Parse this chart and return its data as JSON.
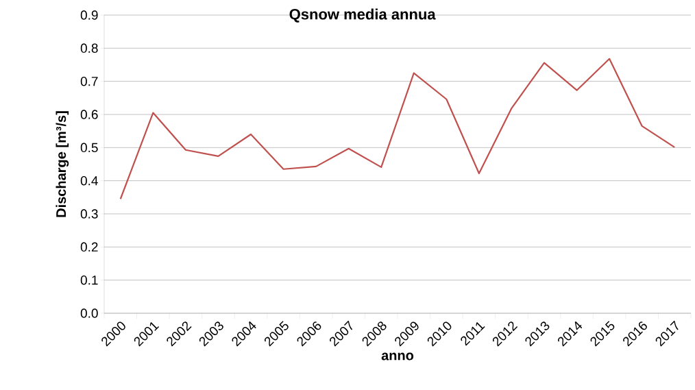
{
  "chart_data": {
    "type": "line",
    "title": "Qsnow media annua",
    "xlabel": "anno",
    "ylabel": "Discharge [m³/s]",
    "categories": [
      "2000",
      "2001",
      "2002",
      "2003",
      "2004",
      "2005",
      "2006",
      "2007",
      "2008",
      "2009",
      "2010",
      "2011",
      "2012",
      "2013",
      "2014",
      "2015",
      "2016",
      "2017"
    ],
    "series": [
      {
        "color": "#c0504d",
        "values": [
          0.345,
          0.605,
          0.493,
          0.474,
          0.54,
          0.435,
          0.443,
          0.497,
          0.441,
          0.725,
          0.646,
          0.422,
          0.619,
          0.756,
          0.673,
          0.768,
          0.565,
          0.501
        ]
      }
    ],
    "ylim": [
      0,
      0.9
    ],
    "yticks": [
      {
        "value": 0,
        "label": "0.0"
      },
      0.1,
      0.2,
      0.3,
      0.4,
      0.5,
      0.6,
      0.7,
      0.8,
      0.9
    ],
    "grid": "y",
    "marker": "none",
    "line_style": "solid"
  }
}
